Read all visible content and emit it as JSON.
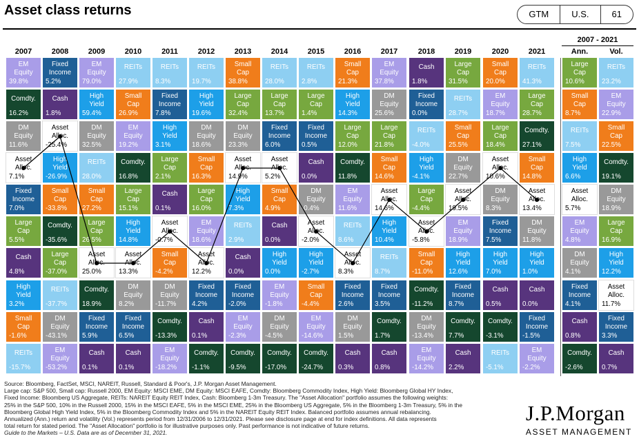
{
  "page": {
    "title": "Asset class returns",
    "tags": [
      "GTM",
      "U.S.",
      "61"
    ],
    "period_label": "2007 - 2021",
    "source_lines": [
      "Source: Bloomberg, FactSet, MSCI, NAREIT, Russell, Standard & Poor's, J.P. Morgan Asset Management.",
      "Large cap: S&P 500, Small cap: Russell 2000, EM Equity: MSCI EME, DM Equity: MSCI EAFE, Comdty: Bloomberg Commodity Index, High Yield: Bloomberg Global HY Index,",
      "Fixed Income: Bloomberg US Aggregate, REITs: NAREIT Equity REIT Index, Cash: Bloomberg 1-3m Treasury. The \"Asset Allocation\" portfolio assumes the following weights:",
      "25% in the S&P 500, 10% in the Russell 2000, 15% in the MSCI EAFE, 5% in the MSCI EME, 25% in the Bloomberg US Aggregate, 5% in the Bloomberg 1-3m Treasury, 5% in the",
      "Bloomberg Global High Yield Index, 5% in the Bloomberg Commodity Index and 5% in the NAREIT Equity REIT Index. Balanced portfolio assumes annual rebalancing.",
      "Annualized (Ann.) return and volatility (Vol.) represents period from 12/31/2006 to 12/31/2021. Please see disclosure page at end for index definitions. All data represents",
      "total return for stated period. The \"Asset Allocation\" portfolio is for illustrative purposes only. Past performance is not indicative of future returns.",
      "Guide to the Markets – U.S. Data are as of December 31, 2021."
    ],
    "logo_name": "J.P.Morgan",
    "logo_sub": "ASSET MANAGEMENT"
  },
  "colors": {
    "EM Equity": "#a99de8",
    "Fixed Income": "#1f5f96",
    "Comdty.": "#15472e",
    "Cash": "#57347d",
    "DM Equity": "#999999",
    "Asset Alloc.": "#ffffff",
    "High Yield": "#1d9fe8",
    "Small Cap": "#f07d1b",
    "REITs": "#8ecff2",
    "Large Cap": "#77a83f"
  },
  "chart_data": {
    "type": "table",
    "columns": [
      "2007",
      "2008",
      "2009",
      "2010",
      "2011",
      "2012",
      "2013",
      "2014",
      "2015",
      "2016",
      "2017",
      "2018",
      "2019",
      "2020",
      "2021",
      "Ann.",
      "Vol."
    ],
    "rows": [
      [
        [
          "EM Equity",
          "39.8%"
        ],
        [
          "Fixed Income",
          "5.2%"
        ],
        [
          "EM Equity",
          "79.0%"
        ],
        [
          "REITs",
          "27.9%"
        ],
        [
          "REITs",
          "8.3%"
        ],
        [
          "REITs",
          "19.7%"
        ],
        [
          "Small Cap",
          "38.8%"
        ],
        [
          "REITs",
          "28.0%"
        ],
        [
          "REITs",
          "2.8%"
        ],
        [
          "Small Cap",
          "21.3%"
        ],
        [
          "EM Equity",
          "37.8%"
        ],
        [
          "Cash",
          "1.8%"
        ],
        [
          "Large Cap",
          "31.5%"
        ],
        [
          "Small Cap",
          "20.0%"
        ],
        [
          "REITs",
          "41.3%"
        ],
        [
          "Large Cap",
          "10.6%"
        ],
        [
          "REITs",
          "23.2%"
        ]
      ],
      [
        [
          "Comdty.",
          "16.2%"
        ],
        [
          "Cash",
          "1.8%"
        ],
        [
          "High Yield",
          "59.4%"
        ],
        [
          "Small Cap",
          "26.9%"
        ],
        [
          "Fixed Income",
          "7.8%"
        ],
        [
          "High Yield",
          "19.6%"
        ],
        [
          "Large Cap",
          "32.4%"
        ],
        [
          "Large Cap",
          "13.7%"
        ],
        [
          "Large Cap",
          "1.4%"
        ],
        [
          "High Yield",
          "14.3%"
        ],
        [
          "DM Equity",
          "25.6%"
        ],
        [
          "Fixed Income",
          "0.0%"
        ],
        [
          "REITs",
          "28.7%"
        ],
        [
          "EM Equity",
          "18.7%"
        ],
        [
          "Large Cap",
          "28.7%"
        ],
        [
          "Small Cap",
          "8.7%"
        ],
        [
          "EM Equity",
          "22.9%"
        ]
      ],
      [
        [
          "DM Equity",
          "11.6%"
        ],
        [
          "Asset Alloc.",
          "-25.4%"
        ],
        [
          "DM Equity",
          "32.5%"
        ],
        [
          "EM Equity",
          "19.2%"
        ],
        [
          "High Yield",
          "3.1%"
        ],
        [
          "DM Equity",
          "18.6%"
        ],
        [
          "DM Equity",
          "23.3%"
        ],
        [
          "Fixed Income",
          "6.0%"
        ],
        [
          "Fixed Income",
          "0.5%"
        ],
        [
          "Large Cap",
          "12.0%"
        ],
        [
          "Large Cap",
          "21.8%"
        ],
        [
          "REITs",
          "-4.0%"
        ],
        [
          "Small Cap",
          "25.5%"
        ],
        [
          "Large Cap",
          "18.4%"
        ],
        [
          "Comdty.",
          "27.1%"
        ],
        [
          "REITs",
          "7.5%"
        ],
        [
          "Small Cap",
          "22.5%"
        ]
      ],
      [
        [
          "Asset Alloc.",
          "7.1%"
        ],
        [
          "High Yield",
          "-26.9%"
        ],
        [
          "REITs",
          "28.0%"
        ],
        [
          "Comdty.",
          "16.8%"
        ],
        [
          "Large Cap",
          "2.1%"
        ],
        [
          "Small Cap",
          "16.3%"
        ],
        [
          "Asset Alloc.",
          "14.9%"
        ],
        [
          "Asset Alloc.",
          "5.2%"
        ],
        [
          "Cash",
          "0.0%"
        ],
        [
          "Comdty.",
          "11.8%"
        ],
        [
          "Small Cap",
          "14.6%"
        ],
        [
          "High Yield",
          "-4.1%"
        ],
        [
          "DM Equity",
          "22.7%"
        ],
        [
          "Asset Alloc.",
          "10.6%"
        ],
        [
          "Small Cap",
          "14.8%"
        ],
        [
          "High Yield",
          "6.6%"
        ],
        [
          "Comdty.",
          "19.1%"
        ]
      ],
      [
        [
          "Fixed Income",
          "7.0%"
        ],
        [
          "Small Cap",
          "-33.8%"
        ],
        [
          "Small Cap",
          "27.2%"
        ],
        [
          "Large Cap",
          "15.1%"
        ],
        [
          "Cash",
          "0.1%"
        ],
        [
          "Large Cap",
          "16.0%"
        ],
        [
          "High Yield",
          "7.3%"
        ],
        [
          "Small Cap",
          "4.9%"
        ],
        [
          "DM Equity",
          "-0.4%"
        ],
        [
          "EM Equity",
          "11.6%"
        ],
        [
          "Asset Alloc.",
          "14.6%"
        ],
        [
          "Large Cap",
          "-4.4%"
        ],
        [
          "Asset Alloc.",
          "19.5%"
        ],
        [
          "DM Equity",
          "8.3%"
        ],
        [
          "Asset Alloc.",
          "13.4%"
        ],
        [
          "Asset Alloc.",
          "5.7%"
        ],
        [
          "DM Equity",
          "18.9%"
        ]
      ],
      [
        [
          "Large Cap",
          "5.5%"
        ],
        [
          "Comdty.",
          "-35.6%"
        ],
        [
          "Large Cap",
          "26.5%"
        ],
        [
          "High Yield",
          "14.8%"
        ],
        [
          "Asset Alloc.",
          "-0.7%"
        ],
        [
          "EM Equity",
          "18.6%"
        ],
        [
          "REITs",
          "2.9%"
        ],
        [
          "Cash",
          "0.0%"
        ],
        [
          "Asset Alloc.",
          "-2.0%"
        ],
        [
          "REITs",
          "8.6%"
        ],
        [
          "High Yield",
          "10.4%"
        ],
        [
          "Asset Alloc.",
          "-5.8%"
        ],
        [
          "EM Equity",
          "18.9%"
        ],
        [
          "Fixed Income",
          "7.5%"
        ],
        [
          "DM Equity",
          "11.8%"
        ],
        [
          "EM Equity",
          "4.8%"
        ],
        [
          "Large Cap",
          "16.9%"
        ]
      ],
      [
        [
          "Cash",
          "4.8%"
        ],
        [
          "Large Cap",
          "-37.0%"
        ],
        [
          "Asset Alloc.",
          "25.0%"
        ],
        [
          "Asset Alloc.",
          "13.3%"
        ],
        [
          "Small Cap",
          "-4.2%"
        ],
        [
          "Asset Alloc.",
          "12.2%"
        ],
        [
          "Cash",
          "0.0%"
        ],
        [
          "High Yield",
          "0.0%"
        ],
        [
          "High Yield",
          "-2.7%"
        ],
        [
          "Asset Alloc.",
          "8.3%"
        ],
        [
          "REITs",
          "8.7%"
        ],
        [
          "Small Cap",
          "-11.0%"
        ],
        [
          "High Yield",
          "12.6%"
        ],
        [
          "High Yield",
          "7.0%"
        ],
        [
          "High Yield",
          "1.0%"
        ],
        [
          "DM Equity",
          "4.1%"
        ],
        [
          "High Yield",
          "12.2%"
        ]
      ],
      [
        [
          "High Yield",
          "3.2%"
        ],
        [
          "REITs",
          "-37.7%"
        ],
        [
          "Comdty.",
          "18.9%"
        ],
        [
          "DM Equity",
          "8.2%"
        ],
        [
          "DM Equity",
          "-11.7%"
        ],
        [
          "Fixed Income",
          "4.2%"
        ],
        [
          "Fixed Income",
          "-2.0%"
        ],
        [
          "EM Equity",
          "-1.8%"
        ],
        [
          "Small Cap",
          "-4.4%"
        ],
        [
          "Fixed Income",
          "2.6%"
        ],
        [
          "Fixed Income",
          "3.5%"
        ],
        [
          "Comdty.",
          "-11.2%"
        ],
        [
          "Fixed Income",
          "8.7%"
        ],
        [
          "Cash",
          "0.5%"
        ],
        [
          "Cash",
          "0.0%"
        ],
        [
          "Fixed Income",
          "4.1%"
        ],
        [
          "Asset Alloc.",
          "11.7%"
        ]
      ],
      [
        [
          "Small Cap",
          "-1.6%"
        ],
        [
          "DM Equity",
          "-43.1%"
        ],
        [
          "Fixed Income",
          "5.9%"
        ],
        [
          "Fixed Income",
          "6.5%"
        ],
        [
          "Comdty.",
          "-13.3%"
        ],
        [
          "Cash",
          "0.1%"
        ],
        [
          "EM Equity",
          "-2.3%"
        ],
        [
          "DM Equity",
          "-4.5%"
        ],
        [
          "EM Equity",
          "-14.6%"
        ],
        [
          "DM Equity",
          "1.5%"
        ],
        [
          "Comdty.",
          "1.7%"
        ],
        [
          "DM Equity",
          "-13.4%"
        ],
        [
          "Comdty.",
          "7.7%"
        ],
        [
          "Comdty.",
          "-3.1%"
        ],
        [
          "Fixed Income",
          "-1.5%"
        ],
        [
          "Cash",
          "0.8%"
        ],
        [
          "Fixed Income",
          "3.3%"
        ]
      ],
      [
        [
          "REITs",
          "-15.7%"
        ],
        [
          "EM Equity",
          "-53.2%"
        ],
        [
          "Cash",
          "0.1%"
        ],
        [
          "Cash",
          "0.1%"
        ],
        [
          "EM Equity",
          "-18.2%"
        ],
        [
          "Comdty.",
          "-1.1%"
        ],
        [
          "Comdty.",
          "-9.5%"
        ],
        [
          "Comdty.",
          "-17.0%"
        ],
        [
          "Comdty.",
          "-24.7%"
        ],
        [
          "Cash",
          "0.3%"
        ],
        [
          "Cash",
          "0.8%"
        ],
        [
          "EM Equity",
          "-14.2%"
        ],
        [
          "Cash",
          "2.2%"
        ],
        [
          "REITs",
          "-5.1%"
        ],
        [
          "EM Equity",
          "-2.2%"
        ],
        [
          "Comdty.",
          "-2.6%"
        ],
        [
          "Cash",
          "0.7%"
        ]
      ]
    ],
    "asset_allocation_line": true
  }
}
